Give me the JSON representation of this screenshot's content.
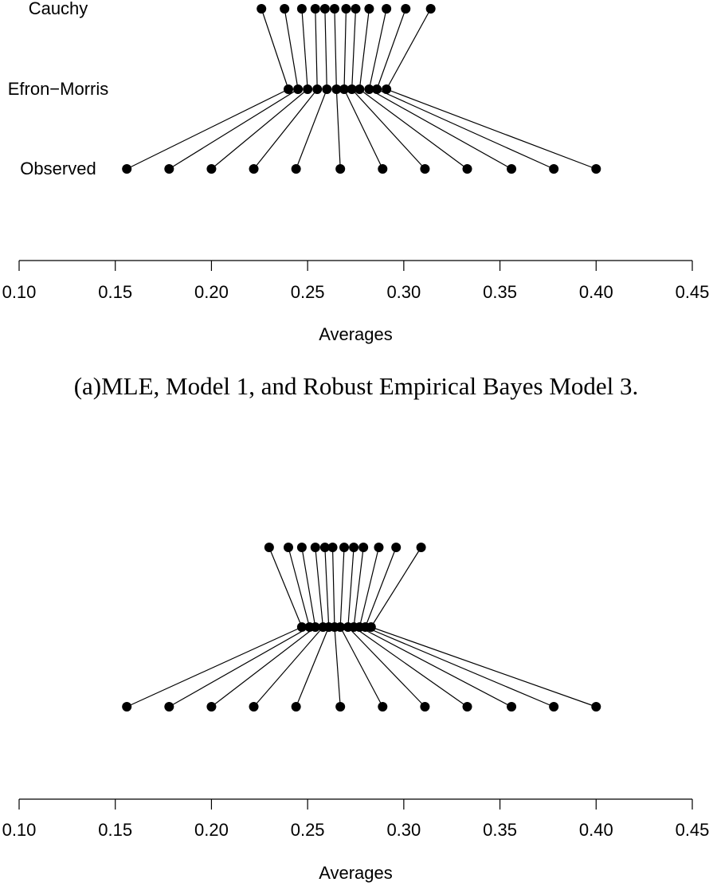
{
  "chart_data": [
    {
      "type": "dotplot",
      "caption": "(a)MLE, Model 1, and Robust Empirical Bayes Model 3.",
      "xlabel": "Averages",
      "xlim": [
        0.1,
        0.45
      ],
      "xticks": [
        {
          "value": 0.1,
          "label": "0.10"
        },
        0.15,
        {
          "value": 0.2,
          "label": "0.20"
        },
        0.25,
        {
          "value": 0.3,
          "label": "0.30"
        },
        0.35,
        {
          "value": 0.4,
          "label": "0.40"
        },
        0.45
      ],
      "color": "#000000",
      "series": [
        {
          "name": "Cauchy",
          "values": [
            0.226,
            0.238,
            0.247,
            0.254,
            0.259,
            0.264,
            0.27,
            0.275,
            0.282,
            0.291,
            0.301,
            0.314
          ]
        },
        {
          "name": "Efron−Morris",
          "values": [
            0.24,
            0.245,
            0.25,
            0.255,
            0.26,
            0.265,
            0.269,
            0.273,
            0.277,
            0.282,
            0.286,
            0.291
          ]
        },
        {
          "name": "Observed",
          "values": [
            0.156,
            0.178,
            0.2,
            0.222,
            0.244,
            0.267,
            0.289,
            0.311,
            0.333,
            0.356,
            0.378,
            0.4
          ]
        }
      ]
    },
    {
      "type": "dotplot",
      "xlabel": "Averages",
      "xlim": [
        0.1,
        0.45
      ],
      "xticks": [
        {
          "value": 0.1,
          "label": "0.10"
        },
        0.15,
        {
          "value": 0.2,
          "label": "0.20"
        },
        0.25,
        {
          "value": 0.3,
          "label": "0.30"
        },
        0.35,
        {
          "value": 0.4,
          "label": "0.40"
        },
        0.45
      ],
      "color": "#000000",
      "series": [
        {
          "values": [
            0.23,
            0.24,
            0.247,
            0.254,
            0.259,
            0.263,
            0.269,
            0.274,
            0.279,
            0.287,
            0.296,
            0.309
          ]
        },
        {
          "values": [
            0.247,
            0.251,
            0.254,
            0.258,
            0.261,
            0.264,
            0.267,
            0.271,
            0.274,
            0.277,
            0.28,
            0.283
          ]
        },
        {
          "values": [
            0.156,
            0.178,
            0.2,
            0.222,
            0.244,
            0.267,
            0.289,
            0.311,
            0.333,
            0.356,
            0.378,
            0.4
          ]
        }
      ]
    }
  ]
}
